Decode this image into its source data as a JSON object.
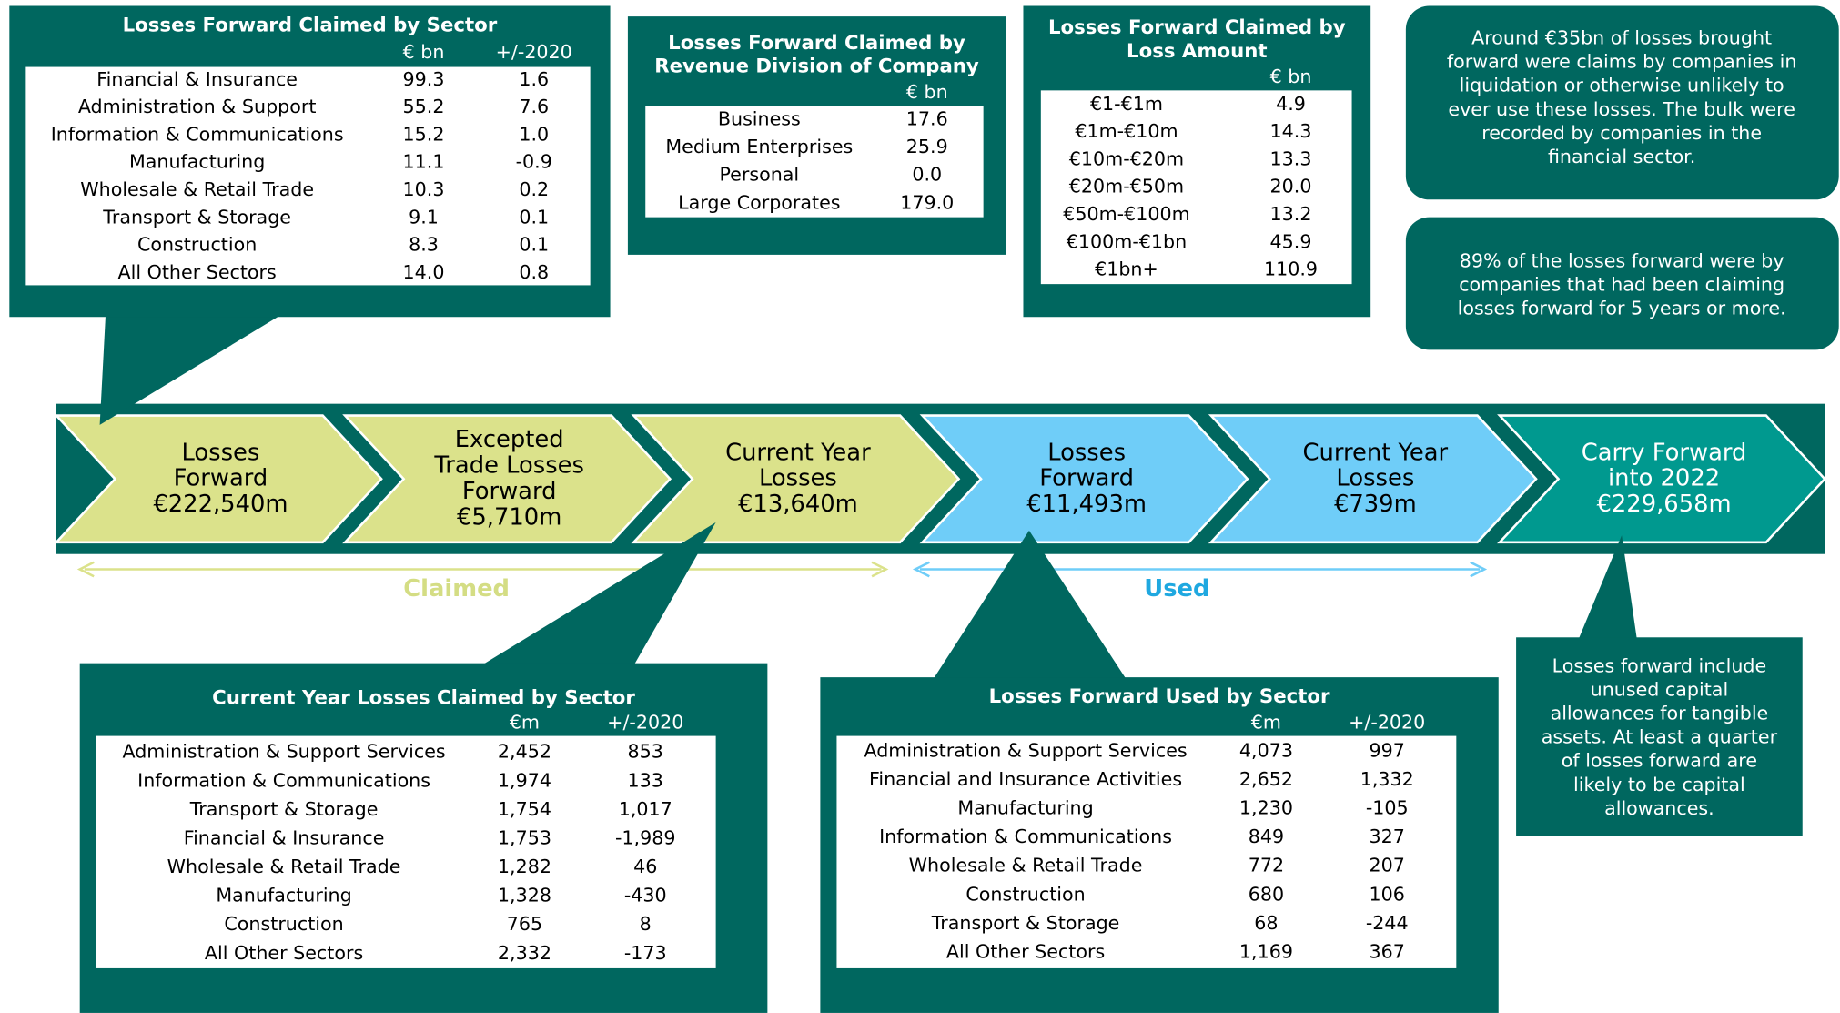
{
  "tables": [
    {
      "title": [
        "Losses Forward Claimed by Sector"
      ],
      "columns": [
        "€ bn",
        "+/-2020"
      ],
      "rows": [
        [
          "Financial & Insurance",
          "99.3",
          "1.6"
        ],
        [
          "Administration & Support",
          "55.2",
          "7.6"
        ],
        [
          "Information & Communications",
          "15.2",
          "1.0"
        ],
        [
          "Manufacturing",
          "11.1",
          "-0.9"
        ],
        [
          "Wholesale & Retail Trade",
          "10.3",
          "0.2"
        ],
        [
          "Transport & Storage",
          "9.1",
          "0.1"
        ],
        [
          "Construction",
          "8.3",
          "0.1"
        ],
        [
          "All Other Sectors",
          "14.0",
          "0.8"
        ]
      ]
    },
    {
      "title": [
        "Losses Forward Claimed by",
        "Revenue Division of Company"
      ],
      "columns": [
        "€ bn"
      ],
      "rows": [
        [
          "Business",
          "17.6"
        ],
        [
          "Medium Enterprises",
          "25.9"
        ],
        [
          "Personal",
          "0.0"
        ],
        [
          "Large Corporates",
          "179.0"
        ]
      ]
    },
    {
      "title": [
        "Losses Forward Claimed by",
        "Loss Amount"
      ],
      "columns": [
        "€ bn"
      ],
      "rows": [
        [
          "€1-€1m",
          "4.9"
        ],
        [
          "€1m-€10m",
          "14.3"
        ],
        [
          "€10m-€20m",
          "13.3"
        ],
        [
          "€20m-€50m",
          "20.0"
        ],
        [
          "€50m-€100m",
          "13.2"
        ],
        [
          "€100m-€1bn",
          "45.9"
        ],
        [
          "€1bn+",
          "110.9"
        ]
      ]
    },
    {
      "title": [
        "Current Year Losses Claimed by Sector"
      ],
      "columns": [
        "€m",
        "+/-2020"
      ],
      "rows": [
        [
          "Administration & Support Services",
          "2,452",
          "853"
        ],
        [
          "Information & Communications",
          "1,974",
          "133"
        ],
        [
          "Transport & Storage",
          "1,754",
          "1,017"
        ],
        [
          "Financial & Insurance",
          "1,753",
          "-1,989"
        ],
        [
          "Wholesale & Retail Trade",
          "1,282",
          "46"
        ],
        [
          "Manufacturing",
          "1,328",
          "-430"
        ],
        [
          "Construction",
          "765",
          "8"
        ],
        [
          "All Other Sectors",
          "2,332",
          "-173"
        ]
      ]
    },
    {
      "title": [
        "Losses Forward Used by Sector"
      ],
      "columns": [
        "€m",
        "+/-2020"
      ],
      "rows": [
        [
          "Administration & Support Services",
          "4,073",
          "997"
        ],
        [
          "Financial and Insurance Activities",
          "2,652",
          "1,332"
        ],
        [
          "Manufacturing",
          "1,230",
          "-105"
        ],
        [
          "Information & Communications",
          "849",
          "327"
        ],
        [
          "Wholesale & Retail Trade",
          "772",
          "207"
        ],
        [
          "Construction",
          "680",
          "106"
        ],
        [
          "Transport & Storage",
          "68",
          "-244"
        ],
        [
          "All Other Sectors",
          "1,169",
          "367"
        ]
      ]
    }
  ],
  "flow": [
    {
      "lines": [
        "Losses",
        "Forward",
        "€222,540m"
      ]
    },
    {
      "lines": [
        "Excepted",
        "Trade Losses",
        "Forward",
        "€5,710m"
      ]
    },
    {
      "lines": [
        "Current Year",
        "Losses",
        "€13,640m"
      ]
    },
    {
      "lines": [
        "Losses",
        "Forward",
        "€11,493m"
      ]
    },
    {
      "lines": [
        "Current Year",
        "Losses",
        "€739m"
      ]
    },
    {
      "lines": [
        "Carry Forward",
        "into 2022",
        "€229,658m"
      ]
    }
  ],
  "ranges": [
    "Claimed",
    "Used"
  ],
  "notes": [
    [
      "Around €35bn of losses brought",
      "forward were claims by companies in",
      "liquidation or otherwise unlikely to",
      "ever use these losses. The bulk were",
      "recorded by companies in the",
      "financial sector."
    ],
    [
      "89% of the losses forward were by",
      "companies that had been claiming",
      "losses forward for 5 years or more."
    ],
    [
      "Losses forward include",
      "unused capital",
      "allowances for tangible",
      "assets. At least a quarter",
      "of losses forward are",
      "likely to be capital",
      "allowances."
    ]
  ]
}
